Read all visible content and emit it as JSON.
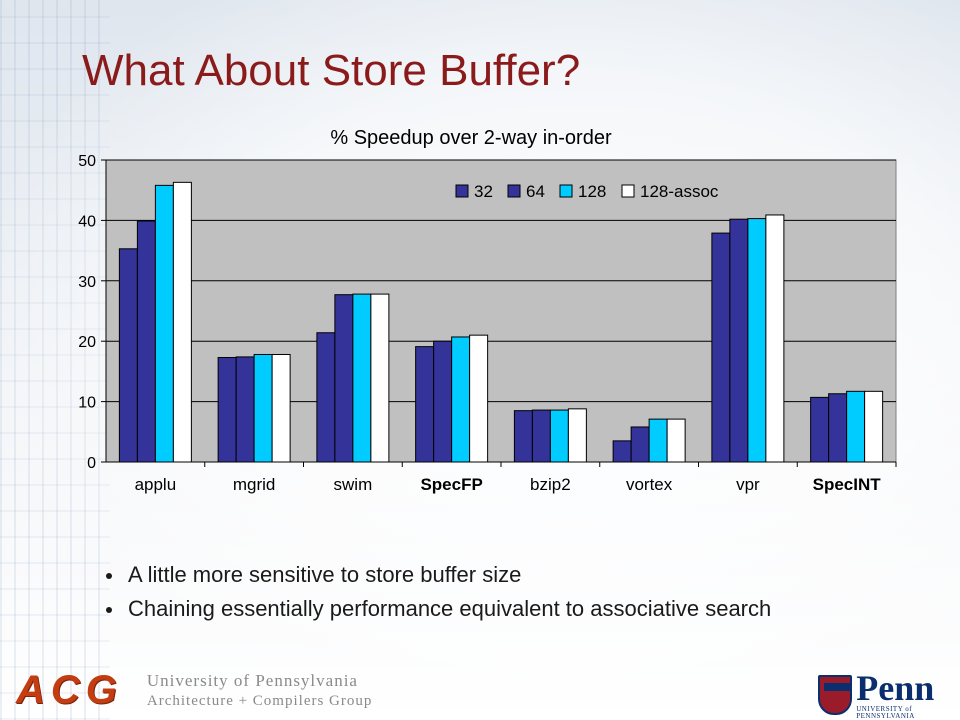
{
  "slide": {
    "title": "What About Store Buffer?",
    "bullets": [
      "A little more sensitive to store buffer size",
      "Chaining essentially performance equivalent to associative search"
    ]
  },
  "footer": {
    "logo_text": "ACG",
    "affiliation_line1": "University of Pennsylvania",
    "affiliation_line2": "Architecture + Compilers Group",
    "penn_word": "Penn",
    "penn_sub": "UNIVERSITY of PENNSYLVANIA"
  },
  "chart_data": {
    "type": "bar",
    "title": "% Speedup over 2-way in-order",
    "xlabel": "",
    "ylabel": "",
    "ylim": [
      0,
      50
    ],
    "yticks": [
      0,
      10,
      20,
      30,
      40,
      50
    ],
    "grid": true,
    "legend_position": "top-right",
    "categories": [
      "applu",
      "mgrid",
      "swim",
      "SpecFP",
      "bzip2",
      "vortex",
      "vpr",
      "SpecINT"
    ],
    "bold_categories": [
      "SpecFP",
      "SpecINT"
    ],
    "series": [
      {
        "name": "32",
        "color": "#333399",
        "values": [
          35.3,
          17.3,
          21.4,
          19.1,
          8.5,
          3.5,
          37.9,
          10.7
        ]
      },
      {
        "name": "64",
        "color": "#333399",
        "values": [
          39.9,
          17.4,
          27.7,
          20.0,
          8.6,
          5.8,
          40.2,
          11.3
        ]
      },
      {
        "name": "128",
        "color": "#00ccff",
        "values": [
          45.8,
          17.8,
          27.8,
          20.7,
          8.6,
          7.1,
          40.3,
          11.7
        ]
      },
      {
        "name": "128-assoc",
        "color": "#ffffff",
        "values": [
          46.3,
          17.8,
          27.8,
          21.0,
          8.8,
          7.1,
          40.9,
          11.7
        ]
      }
    ],
    "plot_background": "#c0c0c0"
  }
}
